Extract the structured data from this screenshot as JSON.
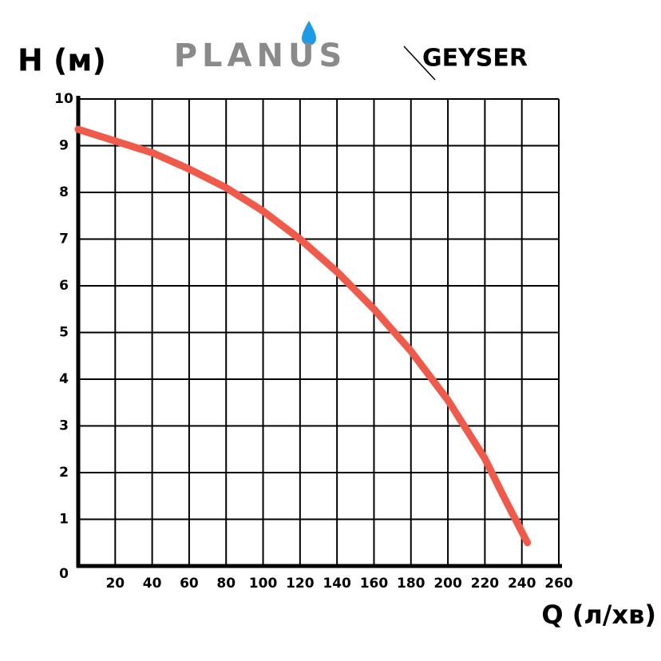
{
  "chart_data": {
    "type": "line",
    "y_label": "H (м)",
    "x_label": "Q (л/хв)",
    "annotations": [
      "PLANUS",
      "GEYSER"
    ],
    "x": [
      0,
      20,
      40,
      60,
      80,
      100,
      120,
      140,
      160,
      180,
      200,
      220,
      230,
      243
    ],
    "series": [
      {
        "color": "#f05a4a",
        "values": [
          9.35,
          9.1,
          8.85,
          8.5,
          8.1,
          7.6,
          7.0,
          6.3,
          5.5,
          4.6,
          3.55,
          2.3,
          1.5,
          0.5
        ]
      }
    ],
    "xlim": [
      0,
      260
    ],
    "ylim": [
      0,
      10
    ],
    "xticks": [
      20,
      40,
      60,
      80,
      100,
      120,
      140,
      160,
      180,
      200,
      220,
      240,
      260
    ],
    "yticks": [
      0,
      1,
      2,
      3,
      4,
      5,
      6,
      7,
      8,
      9,
      10
    ],
    "grid": true
  }
}
